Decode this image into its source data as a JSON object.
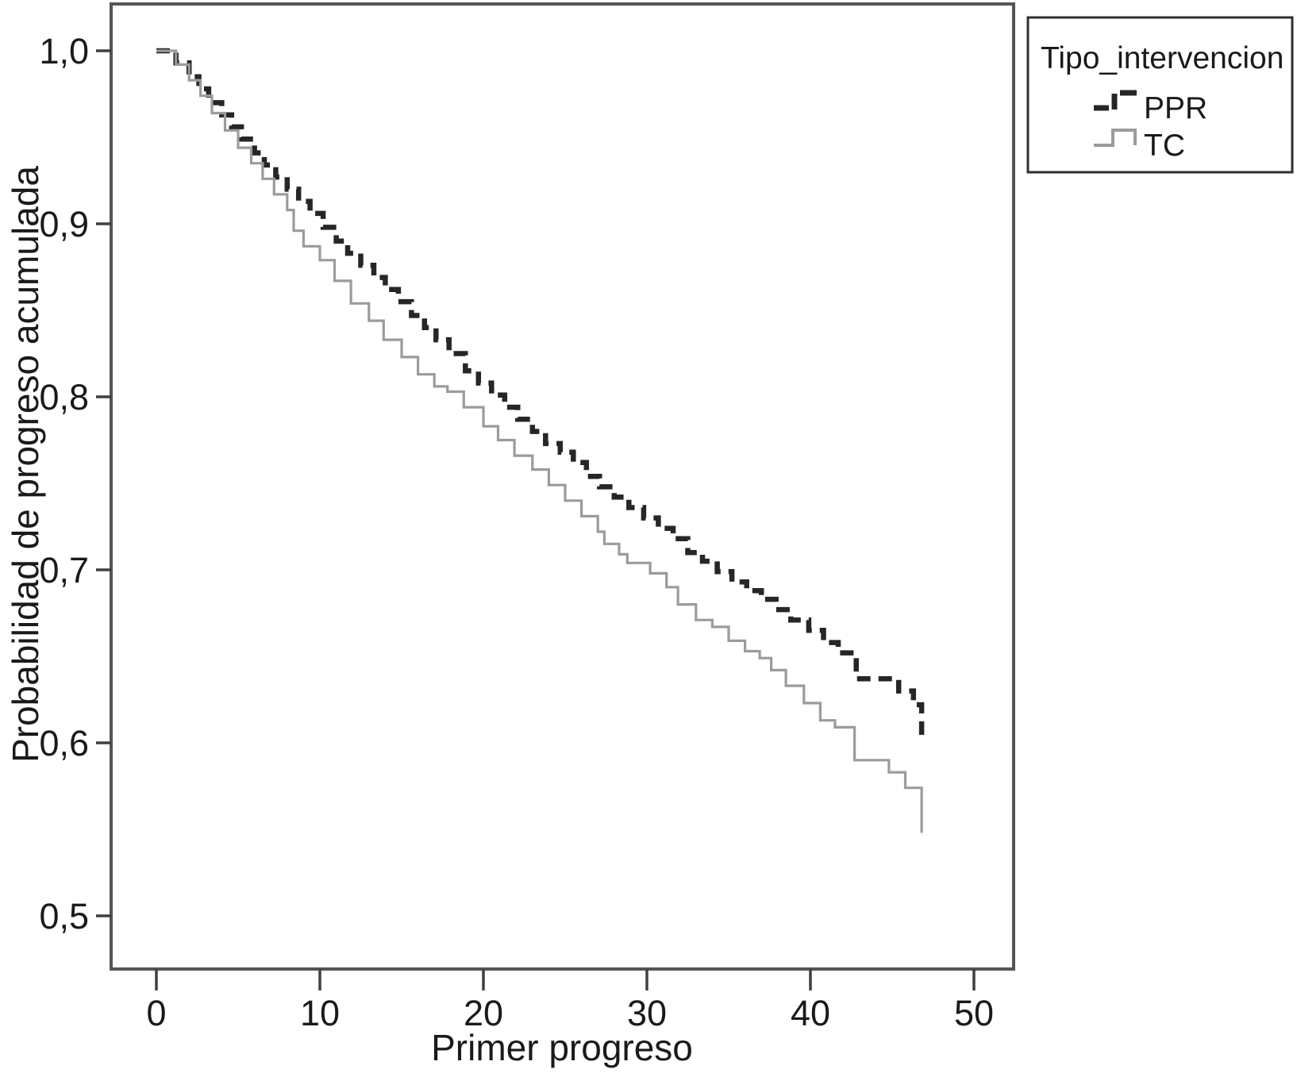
{
  "chart_data": {
    "type": "line",
    "subtype": "kaplan-meier-step",
    "title": "",
    "xlabel": "Primer progreso",
    "ylabel": "Probabilidad de progreso acumulada",
    "xlim": [
      -2.8,
      52.4
    ],
    "ylim": [
      0.468,
      1.027
    ],
    "x_ticks": [
      0,
      10,
      20,
      30,
      40,
      50
    ],
    "y_ticks": [
      "1,0",
      "0,9",
      "0,8",
      "0,7",
      "0,6",
      "0,5"
    ],
    "y_tick_values": [
      1.0,
      0.9,
      0.8,
      0.7,
      0.6,
      0.5
    ],
    "grid": "off",
    "legend": {
      "title": "Tipo_intervencion",
      "position": "outside-top-right",
      "entries": [
        {
          "label": "PPR",
          "style": "dashed",
          "color": "#262626"
        },
        {
          "label": "TC",
          "style": "solid",
          "color": "#9b9b9b"
        }
      ]
    },
    "series": [
      {
        "name": "PPR",
        "style": "dashed",
        "color": "#262626",
        "stroke_width": 6.5,
        "dash": [
          17,
          10
        ],
        "points": [
          [
            0,
            1.0
          ],
          [
            1.2,
            0.993
          ],
          [
            2,
            0.985
          ],
          [
            2.6,
            0.978
          ],
          [
            3.2,
            0.97
          ],
          [
            4,
            0.963
          ],
          [
            4.6,
            0.956
          ],
          [
            5.2,
            0.949
          ],
          [
            6,
            0.941
          ],
          [
            6.6,
            0.934
          ],
          [
            7.3,
            0.927
          ],
          [
            8,
            0.92
          ],
          [
            8.7,
            0.913
          ],
          [
            9.4,
            0.906
          ],
          [
            10.2,
            0.898
          ],
          [
            11,
            0.89
          ],
          [
            11.7,
            0.883
          ],
          [
            12.5,
            0.876
          ],
          [
            13.3,
            0.869
          ],
          [
            14,
            0.862
          ],
          [
            14.8,
            0.855
          ],
          [
            15.6,
            0.847
          ],
          [
            16.4,
            0.84
          ],
          [
            17.1,
            0.833
          ],
          [
            17.9,
            0.825
          ],
          [
            18.9,
            0.815
          ],
          [
            19.7,
            0.808
          ],
          [
            20.5,
            0.801
          ],
          [
            21.3,
            0.794
          ],
          [
            22.1,
            0.787
          ],
          [
            23,
            0.78
          ],
          [
            23.8,
            0.773
          ],
          [
            24.7,
            0.768
          ],
          [
            25.5,
            0.762
          ],
          [
            26.3,
            0.754
          ],
          [
            27.1,
            0.748
          ],
          [
            28,
            0.742
          ],
          [
            28.9,
            0.736
          ],
          [
            29.8,
            0.73
          ],
          [
            30.7,
            0.724
          ],
          [
            31.6,
            0.718
          ],
          [
            32.5,
            0.71
          ],
          [
            33.4,
            0.705
          ],
          [
            34.3,
            0.699
          ],
          [
            35.2,
            0.693
          ],
          [
            36.1,
            0.688
          ],
          [
            37,
            0.683
          ],
          [
            37.9,
            0.677
          ],
          [
            38.8,
            0.671
          ],
          [
            39.9,
            0.665
          ],
          [
            40.8,
            0.658
          ],
          [
            41.7,
            0.652
          ],
          [
            42.8,
            0.637
          ],
          [
            45.4,
            0.63
          ],
          [
            46.3,
            0.622
          ],
          [
            46.8,
            0.604
          ]
        ]
      },
      {
        "name": "TC",
        "style": "solid",
        "color": "#9b9b9b",
        "stroke_width": 3.2,
        "dash": null,
        "points": [
          [
            0,
            1.0
          ],
          [
            1.2,
            0.992
          ],
          [
            2,
            0.983
          ],
          [
            2.7,
            0.974
          ],
          [
            3.4,
            0.964
          ],
          [
            4.2,
            0.954
          ],
          [
            5,
            0.944
          ],
          [
            5.8,
            0.935
          ],
          [
            6.5,
            0.926
          ],
          [
            7.2,
            0.917
          ],
          [
            8,
            0.908
          ],
          [
            8.4,
            0.896
          ],
          [
            9,
            0.887
          ],
          [
            10,
            0.879
          ],
          [
            10.9,
            0.867
          ],
          [
            11.9,
            0.854
          ],
          [
            13,
            0.844
          ],
          [
            13.9,
            0.833
          ],
          [
            15,
            0.823
          ],
          [
            16,
            0.813
          ],
          [
            17,
            0.806
          ],
          [
            17.8,
            0.803
          ],
          [
            18.8,
            0.794
          ],
          [
            20,
            0.783
          ],
          [
            20.9,
            0.775
          ],
          [
            21.9,
            0.766
          ],
          [
            23,
            0.758
          ],
          [
            24,
            0.749
          ],
          [
            25,
            0.74
          ],
          [
            26,
            0.731
          ],
          [
            27,
            0.722
          ],
          [
            27.4,
            0.715
          ],
          [
            28.3,
            0.709
          ],
          [
            28.8,
            0.704
          ],
          [
            30.2,
            0.698
          ],
          [
            31.2,
            0.69
          ],
          [
            31.9,
            0.68
          ],
          [
            33,
            0.671
          ],
          [
            34,
            0.667
          ],
          [
            35,
            0.659
          ],
          [
            36,
            0.653
          ],
          [
            36.9,
            0.649
          ],
          [
            37.6,
            0.642
          ],
          [
            38.5,
            0.633
          ],
          [
            39.6,
            0.623
          ],
          [
            40.6,
            0.613
          ],
          [
            41.5,
            0.609
          ],
          [
            42.7,
            0.59
          ],
          [
            44.8,
            0.583
          ],
          [
            45.8,
            0.574
          ],
          [
            46.8,
            0.548
          ]
        ]
      }
    ]
  }
}
